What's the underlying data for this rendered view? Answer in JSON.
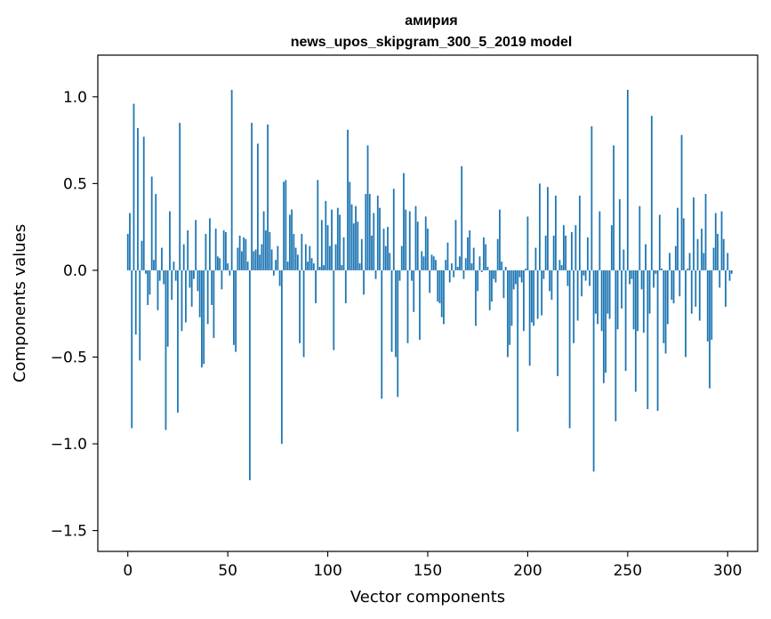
{
  "chart_data": {
    "type": "bar",
    "title_line1": "амирия",
    "title_line2": "news_upos_skipgram_300_5_2019 model",
    "xlabel": "Vector components",
    "ylabel": "Components values",
    "xlim": [
      -15,
      315
    ],
    "ylim": [
      -1.62,
      1.24
    ],
    "xticks": [
      0,
      50,
      100,
      150,
      200,
      250,
      300
    ],
    "xtick_labels": [
      "0",
      "50",
      "100",
      "150",
      "200",
      "250",
      "300"
    ],
    "yticks": [
      -1.5,
      -1.0,
      -0.5,
      0.0,
      0.5,
      1.0
    ],
    "ytick_labels": [
      "−1.5",
      "−1.0",
      "−0.5",
      "0.0",
      "0.5",
      "1.0"
    ],
    "bar_color": "#1f77b4",
    "values": [
      0.21,
      0.33,
      -0.91,
      0.96,
      -0.37,
      0.82,
      -0.52,
      0.17,
      0.77,
      -0.02,
      -0.2,
      -0.14,
      0.54,
      0.06,
      0.44,
      -0.23,
      -0.06,
      0.13,
      -0.08,
      -0.92,
      -0.44,
      0.34,
      -0.17,
      0.05,
      -0.06,
      -0.82,
      0.85,
      -0.35,
      0.15,
      -0.3,
      0.23,
      -0.1,
      -0.21,
      -0.05,
      0.29,
      -0.12,
      -0.27,
      -0.56,
      -0.54,
      0.21,
      -0.31,
      0.3,
      -0.2,
      -0.39,
      0.24,
      0.08,
      0.07,
      -0.11,
      0.23,
      0.22,
      0.04,
      -0.03,
      1.04,
      -0.43,
      -0.47,
      0.13,
      0.2,
      0.11,
      0.19,
      0.18,
      0.05,
      -1.21,
      0.85,
      0.11,
      0.12,
      0.73,
      0.09,
      0.15,
      0.34,
      0.23,
      0.84,
      0.22,
      0.12,
      -0.03,
      0.06,
      0.14,
      -0.09,
      -1.0,
      0.51,
      0.52,
      0.05,
      0.32,
      0.35,
      0.21,
      0.13,
      0.09,
      -0.42,
      0.21,
      -0.5,
      0.15,
      0.05,
      0.14,
      0.07,
      0.04,
      -0.19,
      0.52,
      0.02,
      0.29,
      0.03,
      0.4,
      0.26,
      0.14,
      0.35,
      -0.46,
      0.15,
      0.36,
      0.32,
      0.03,
      0.19,
      -0.19,
      0.81,
      0.51,
      0.38,
      0.27,
      0.37,
      0.28,
      0.04,
      0.18,
      -0.14,
      0.44,
      0.72,
      0.44,
      0.2,
      0.33,
      -0.05,
      0.43,
      0.36,
      -0.74,
      0.24,
      0.14,
      0.25,
      0.1,
      -0.47,
      0.47,
      -0.5,
      -0.73,
      -0.06,
      0.14,
      0.56,
      0.35,
      -0.42,
      0.34,
      -0.06,
      -0.24,
      0.37,
      0.28,
      -0.4,
      0.11,
      0.08,
      0.31,
      0.24,
      -0.13,
      0.09,
      0.08,
      0.06,
      -0.18,
      -0.19,
      -0.27,
      -0.31,
      0.06,
      0.16,
      -0.07,
      0.04,
      -0.04,
      0.29,
      0.02,
      0.08,
      0.6,
      -0.05,
      0.07,
      0.19,
      0.23,
      0.04,
      0.13,
      -0.32,
      -0.12,
      0.08,
      -0.01,
      0.19,
      0.15,
      0.02,
      -0.23,
      -0.18,
      -0.05,
      -0.07,
      0.18,
      0.35,
      0.05,
      -0.16,
      0.02,
      -0.5,
      -0.43,
      -0.32,
      -0.11,
      -0.08,
      -0.93,
      -0.04,
      -0.07,
      -0.35,
      0.01,
      0.31,
      -0.55,
      -0.3,
      -0.32,
      0.13,
      -0.28,
      0.5,
      -0.26,
      -0.05,
      0.2,
      0.48,
      -0.12,
      -0.17,
      0.2,
      0.43,
      -0.61,
      0.06,
      0.03,
      0.26,
      0.2,
      -0.09,
      -0.91,
      0.22,
      -0.42,
      0.26,
      -0.29,
      0.43,
      -0.15,
      -0.03,
      -0.06,
      0.19,
      -0.09,
      0.83,
      -1.16,
      -0.25,
      -0.31,
      0.34,
      -0.35,
      -0.65,
      -0.59,
      -0.25,
      -0.28,
      0.26,
      0.72,
      -0.87,
      -0.34,
      0.41,
      -0.22,
      0.12,
      -0.58,
      1.04,
      -0.08,
      -0.05,
      -0.34,
      -0.7,
      -0.35,
      0.37,
      -0.11,
      -0.36,
      0.15,
      -0.8,
      -0.25,
      0.89,
      -0.1,
      -0.02,
      -0.81,
      0.32,
      0.01,
      -0.42,
      -0.48,
      -0.31,
      0.1,
      -0.17,
      -0.19,
      0.14,
      0.36,
      -0.15,
      0.78,
      0.3,
      -0.5,
      0.01,
      0.1,
      -0.25,
      0.42,
      -0.21,
      0.18,
      -0.29,
      0.24,
      0.1,
      0.44,
      -0.41,
      -0.68,
      -0.4,
      0.13,
      0.33,
      0.21,
      -0.1,
      0.34,
      0.18,
      -0.21,
      0.1,
      -0.06,
      -0.02
    ]
  }
}
